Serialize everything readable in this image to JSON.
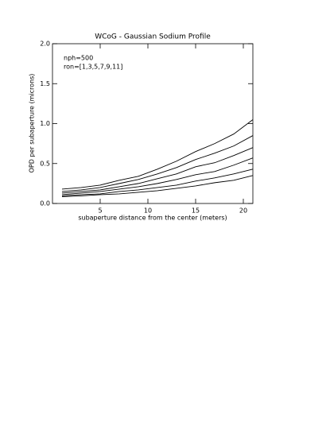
{
  "chart_data": {
    "type": "line",
    "title": "WCoG - Gaussian Sodium Profile",
    "x_label": "subaperture distance from the center (meters)",
    "y_label": "OPD per subaperture (microns)",
    "annotations": [
      "nph=500",
      "ron=[1,3,5,7,9,11]"
    ],
    "x": [
      1,
      3,
      5,
      7,
      9,
      11,
      13,
      15,
      17,
      19,
      21
    ],
    "series": [
      {
        "color": "#000000",
        "values": [
          0.18,
          0.2,
          0.23,
          0.29,
          0.34,
          0.43,
          0.53,
          0.65,
          0.75,
          0.87,
          1.05
        ]
      },
      {
        "color": "#000000",
        "values": [
          0.15,
          0.17,
          0.2,
          0.25,
          0.3,
          0.37,
          0.45,
          0.55,
          0.63,
          0.72,
          0.85
        ]
      },
      {
        "color": "#000000",
        "values": [
          0.13,
          0.15,
          0.17,
          0.21,
          0.25,
          0.31,
          0.37,
          0.46,
          0.51,
          0.6,
          0.7
        ]
      },
      {
        "color": "#000000",
        "values": [
          0.11,
          0.13,
          0.15,
          0.18,
          0.21,
          0.25,
          0.3,
          0.36,
          0.4,
          0.48,
          0.57
        ]
      },
      {
        "color": "#000000",
        "values": [
          0.095,
          0.11,
          0.12,
          0.15,
          0.17,
          0.2,
          0.23,
          0.28,
          0.32,
          0.37,
          0.43
        ]
      },
      {
        "color": "#000000",
        "values": [
          0.085,
          0.095,
          0.11,
          0.12,
          0.14,
          0.16,
          0.19,
          0.22,
          0.26,
          0.29,
          0.35
        ]
      }
    ],
    "xlim": [
      0,
      21
    ],
    "xticks": [
      5,
      10,
      15,
      20
    ],
    "ylim": [
      0,
      2
    ],
    "yticks": [
      {
        "value": 0,
        "label": "0.0"
      },
      {
        "value": 0.5,
        "label": "0.5"
      },
      {
        "value": 1,
        "label": "1.0"
      },
      {
        "value": 1.5,
        "label": "1.5"
      },
      {
        "value": 2,
        "label": "2.0"
      }
    ]
  }
}
